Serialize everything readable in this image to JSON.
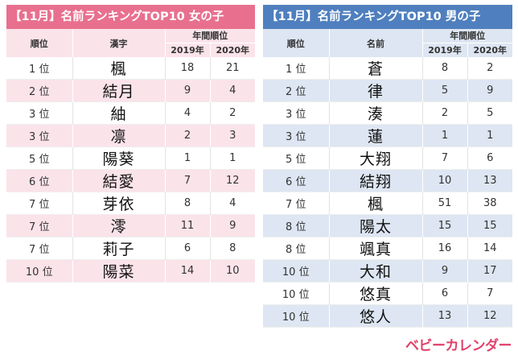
{
  "girls": {
    "title": "【11月】名前ランキングTOP10 女の子",
    "headers": {
      "rank": "順位",
      "name": "漢字",
      "count": "年間順位",
      "y2019": "2019年",
      "y2020": "2020年"
    },
    "rows": [
      {
        "rank": "1 位",
        "name": "楓",
        "y2019": "18",
        "y2020": "21"
      },
      {
        "rank": "2 位",
        "name": "結月",
        "y2019": "9",
        "y2020": "4"
      },
      {
        "rank": "3 位",
        "name": "紬",
        "y2019": "4",
        "y2020": "2"
      },
      {
        "rank": "3 位",
        "name": "凛",
        "y2019": "2",
        "y2020": "3"
      },
      {
        "rank": "5 位",
        "name": "陽葵",
        "y2019": "1",
        "y2020": "1"
      },
      {
        "rank": "6 位",
        "name": "結愛",
        "y2019": "7",
        "y2020": "12"
      },
      {
        "rank": "7 位",
        "name": "芽依",
        "y2019": "8",
        "y2020": "4"
      },
      {
        "rank": "7 位",
        "name": "澪",
        "y2019": "11",
        "y2020": "9"
      },
      {
        "rank": "7 位",
        "name": "莉子",
        "y2019": "6",
        "y2020": "8"
      },
      {
        "rank": "10 位",
        "name": "陽菜",
        "y2019": "14",
        "y2020": "10"
      }
    ]
  },
  "boys": {
    "title": "【11月】名前ランキングTOP10 男の子",
    "headers": {
      "rank": "順位",
      "name": "名前",
      "count": "年間順位",
      "y2019": "2019年",
      "y2020": "2020年"
    },
    "rows": [
      {
        "rank": "1 位",
        "name": "蒼",
        "y2019": "8",
        "y2020": "2"
      },
      {
        "rank": "2 位",
        "name": "律",
        "y2019": "5",
        "y2020": "9"
      },
      {
        "rank": "3 位",
        "name": "湊",
        "y2019": "2",
        "y2020": "5"
      },
      {
        "rank": "3 位",
        "name": "蓮",
        "y2019": "1",
        "y2020": "1"
      },
      {
        "rank": "5 位",
        "name": "大翔",
        "y2019": "7",
        "y2020": "6"
      },
      {
        "rank": "6 位",
        "name": "結翔",
        "y2019": "10",
        "y2020": "13"
      },
      {
        "rank": "7 位",
        "name": "楓",
        "y2019": "51",
        "y2020": "38"
      },
      {
        "rank": "8 位",
        "name": "陽太",
        "y2019": "15",
        "y2020": "15"
      },
      {
        "rank": "8 位",
        "name": "颯真",
        "y2019": "16",
        "y2020": "14"
      },
      {
        "rank": "10 位",
        "name": "大和",
        "y2019": "9",
        "y2020": "17"
      },
      {
        "rank": "10 位",
        "name": "悠真",
        "y2019": "6",
        "y2020": "7"
      },
      {
        "rank": "10 位",
        "name": "悠人",
        "y2019": "13",
        "y2020": "12"
      }
    ]
  },
  "logo": {
    "text": "ベビーカレンダー"
  }
}
